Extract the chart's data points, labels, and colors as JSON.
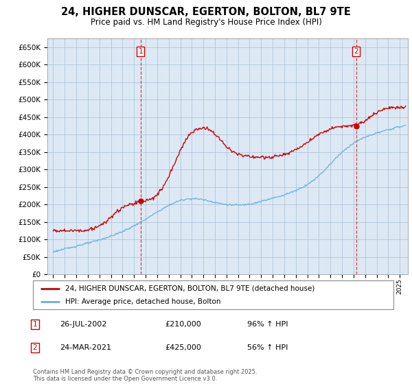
{
  "title": "24, HIGHER DUNSCAR, EGERTON, BOLTON, BL7 9TE",
  "subtitle": "Price paid vs. HM Land Registry's House Price Index (HPI)",
  "legend_label_red": "24, HIGHER DUNSCAR, EGERTON, BOLTON, BL7 9TE (detached house)",
  "legend_label_blue": "HPI: Average price, detached house, Bolton",
  "sale1_date": "26-JUL-2002",
  "sale1_price": 210000,
  "sale1_hpi_pct": "96% ↑ HPI",
  "sale2_date": "24-MAR-2021",
  "sale2_price": 425000,
  "sale2_hpi_pct": "56% ↑ HPI",
  "footer": "Contains HM Land Registry data © Crown copyright and database right 2025.\nThis data is licensed under the Open Government Licence v3.0.",
  "ylim": [
    0,
    675000
  ],
  "ytick_step": 50000,
  "background_color": "#ffffff",
  "plot_bg_color": "#dce9f5",
  "red_color": "#cc0000",
  "blue_color": "#6baed6",
  "grid_color": "#b0c4d8",
  "sale1_x": 2002.57,
  "sale2_x": 2021.23,
  "xmin": 1995.0,
  "xmax": 2025.5
}
